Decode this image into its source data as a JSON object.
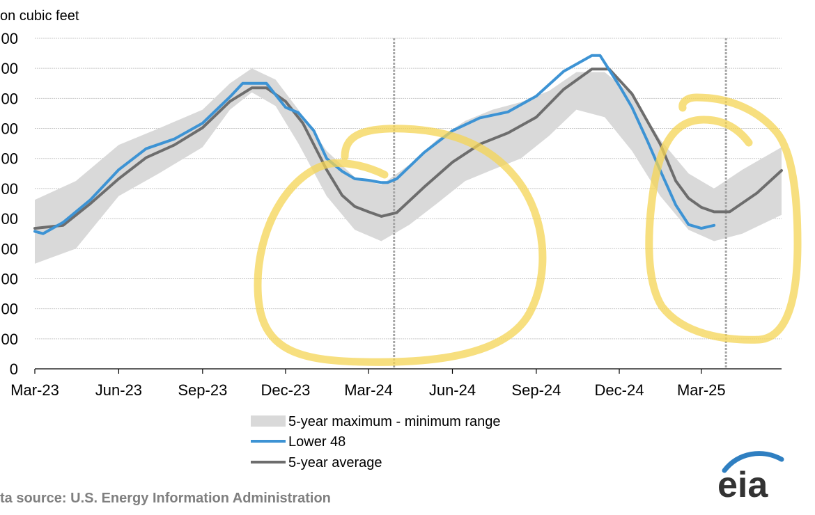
{
  "chart_data": {
    "type": "line",
    "unit_label": "on cubic feet",
    "y_ticks": [
      "00",
      "00",
      "00",
      "00",
      "00",
      "00",
      "00",
      "00",
      "00",
      "00",
      "00",
      "0"
    ],
    "ylim": [
      0,
      4400
    ],
    "x_ticks": [
      "Mar-23",
      "Jun-23",
      "Sep-23",
      "Dec-23",
      "Mar-24",
      "Jun-24",
      "Sep-24",
      "Dec-24",
      "Mar-25"
    ],
    "xlim": [
      "2023-03-01",
      "2025-05-28"
    ],
    "grid": true,
    "vertical_markers": [
      "2024-03-29",
      "2025-03-28"
    ],
    "legend_position": "bottom-center",
    "series": [
      {
        "name": "5-year maximum - minimum range",
        "kind": "band",
        "color": "#d9d9d9",
        "x": [
          "2023-03-01",
          "2023-04-15",
          "2023-06-01",
          "2023-07-15",
          "2023-09-01",
          "2023-10-01",
          "2023-10-25",
          "2023-11-20",
          "2023-12-15",
          "2024-01-15",
          "2024-02-15",
          "2024-03-15",
          "2024-04-15",
          "2024-05-15",
          "2024-06-15",
          "2024-07-15",
          "2024-08-15",
          "2024-09-15",
          "2024-10-15",
          "2024-11-15",
          "2024-12-15",
          "2025-01-15",
          "2025-02-15",
          "2025-03-15",
          "2025-04-15",
          "2025-05-28"
        ],
        "max": [
          2250,
          2500,
          2980,
          3200,
          3450,
          3800,
          4000,
          3850,
          3450,
          2900,
          2550,
          2450,
          2720,
          3050,
          3300,
          3450,
          3550,
          3700,
          3950,
          3950,
          3650,
          3050,
          2600,
          2400,
          2650,
          2950
        ],
        "min": [
          1400,
          1600,
          2300,
          2600,
          2950,
          3450,
          3680,
          3500,
          3000,
          2300,
          1850,
          1700,
          1920,
          2200,
          2500,
          2650,
          2800,
          3100,
          3450,
          3350,
          2900,
          2300,
          1850,
          1700,
          1800,
          2050
        ]
      },
      {
        "name": "Lower 48",
        "kind": "line",
        "color": "#3d93d4",
        "x": [
          "2023-03-01",
          "2023-03-10",
          "2023-04-01",
          "2023-05-01",
          "2023-06-01",
          "2023-07-01",
          "2023-08-01",
          "2023-09-01",
          "2023-10-01",
          "2023-10-15",
          "2023-11-01",
          "2023-11-10",
          "2023-12-01",
          "2023-12-15",
          "2024-01-01",
          "2024-01-15",
          "2024-02-01",
          "2024-02-15",
          "2024-03-01",
          "2024-03-15",
          "2024-03-22",
          "2024-04-01",
          "2024-05-01",
          "2024-06-01",
          "2024-07-01",
          "2024-08-01",
          "2024-09-01",
          "2024-10-01",
          "2024-11-01",
          "2024-11-10",
          "2024-12-01",
          "2024-12-15",
          "2025-01-01",
          "2025-01-15",
          "2025-02-01",
          "2025-02-15",
          "2025-03-01",
          "2025-03-15"
        ],
        "values": [
          1830,
          1800,
          1950,
          2250,
          2650,
          2930,
          3060,
          3270,
          3620,
          3800,
          3800,
          3800,
          3480,
          3410,
          3170,
          2800,
          2630,
          2530,
          2510,
          2480,
          2480,
          2530,
          2880,
          3170,
          3340,
          3420,
          3630,
          3960,
          4170,
          4170,
          3770,
          3480,
          3030,
          2640,
          2180,
          1920,
          1870,
          1910
        ]
      },
      {
        "name": "5-year average",
        "kind": "line",
        "color": "#6d6d6d",
        "x": [
          "2023-03-01",
          "2023-04-01",
          "2023-05-01",
          "2023-06-01",
          "2023-07-01",
          "2023-08-01",
          "2023-09-01",
          "2023-10-01",
          "2023-10-25",
          "2023-11-10",
          "2023-12-01",
          "2023-12-20",
          "2024-01-15",
          "2024-02-01",
          "2024-02-15",
          "2024-03-01",
          "2024-03-15",
          "2024-04-01",
          "2024-05-01",
          "2024-06-01",
          "2024-07-01",
          "2024-08-01",
          "2024-09-01",
          "2024-10-01",
          "2024-11-01",
          "2024-11-20",
          "2024-12-15",
          "2025-01-15",
          "2025-02-01",
          "2025-02-15",
          "2025-03-01",
          "2025-03-15",
          "2025-04-01",
          "2025-05-01",
          "2025-05-28"
        ],
        "values": [
          1870,
          1910,
          2200,
          2530,
          2810,
          2980,
          3210,
          3560,
          3740,
          3740,
          3560,
          3270,
          2650,
          2310,
          2160,
          2090,
          2030,
          2080,
          2420,
          2750,
          2990,
          3140,
          3350,
          3720,
          3990,
          3990,
          3660,
          2990,
          2500,
          2270,
          2150,
          2090,
          2090,
          2340,
          2640
        ]
      }
    ],
    "legend": {
      "range_label": "5-year maximum - minimum range",
      "lower48_label": "Lower 48",
      "average_label": "5-year average"
    },
    "source": "ta source:  U.S. Energy Information Administration",
    "logo": "eia"
  }
}
